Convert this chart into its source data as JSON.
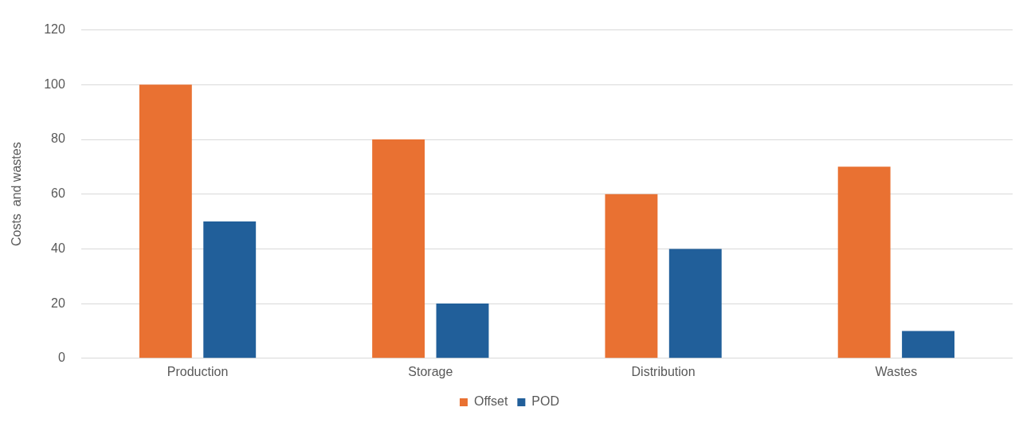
{
  "chart_data": {
    "type": "bar",
    "ylabel": "Costs  and wastes",
    "categories": [
      "Production",
      "Storage",
      "Distribution",
      "Wastes"
    ],
    "series": [
      {
        "name": "Offset",
        "color": "#e97132",
        "values": [
          100,
          80,
          60,
          70
        ]
      },
      {
        "name": "POD",
        "color": "#215f9a",
        "values": [
          50,
          20,
          40,
          10
        ]
      }
    ],
    "ylim": [
      0,
      120
    ],
    "yticks": [
      0,
      20,
      40,
      60,
      80,
      100,
      120
    ],
    "grid": "y",
    "legend": "bottom"
  }
}
